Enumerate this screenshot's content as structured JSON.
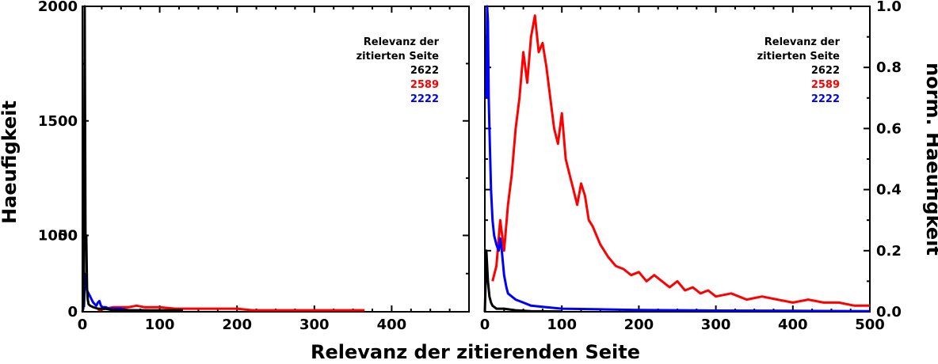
{
  "xlabel": "Relevanz der zitierenden Seite",
  "chart_data": [
    {
      "type": "line",
      "panel": "left",
      "ylabel": "Haeufigkeit",
      "xlim": [
        0,
        500
      ],
      "x_ticks": [
        "0",
        "100",
        "200",
        "300",
        "400"
      ],
      "y_scale": "broken",
      "y_ticks": [
        "0",
        "50",
        "1000",
        "1500",
        "2000"
      ],
      "legend_placement": "top-right",
      "legend_title": [
        "Relevanz der",
        "zitierten Seite"
      ],
      "series": [
        {
          "name": "2622",
          "color": "#000000",
          "points": [
            [
              0,
              0
            ],
            [
              1,
              2
            ],
            [
              2,
              8
            ],
            [
              3,
              2000
            ],
            [
              4,
              350
            ],
            [
              5,
              60
            ],
            [
              6,
              15
            ],
            [
              7,
              8
            ],
            [
              8,
              5
            ],
            [
              10,
              4
            ],
            [
              14,
              3
            ],
            [
              20,
              2
            ],
            [
              30,
              2
            ],
            [
              40,
              1
            ],
            [
              60,
              1
            ],
            [
              80,
              1
            ],
            [
              100,
              1
            ],
            [
              130,
              1
            ]
          ]
        },
        {
          "name": "2589",
          "color": "#ff0000",
          "points": [
            [
              20,
              1
            ],
            [
              30,
              2
            ],
            [
              40,
              3
            ],
            [
              50,
              3
            ],
            [
              60,
              3
            ],
            [
              70,
              4
            ],
            [
              80,
              3
            ],
            [
              90,
              3
            ],
            [
              100,
              3
            ],
            [
              120,
              2
            ],
            [
              140,
              2
            ],
            [
              160,
              2
            ],
            [
              180,
              2
            ],
            [
              200,
              2
            ],
            [
              220,
              1
            ],
            [
              240,
              1
            ],
            [
              260,
              1
            ],
            [
              280,
              1
            ],
            [
              300,
              1
            ],
            [
              320,
              1
            ],
            [
              340,
              1
            ],
            [
              365,
              1
            ]
          ]
        },
        {
          "name": "2222",
          "color": "#0000ff",
          "points": [
            [
              2,
              3
            ],
            [
              3,
              18
            ],
            [
              4,
              24
            ],
            [
              5,
              20
            ],
            [
              6,
              14
            ],
            [
              8,
              12
            ],
            [
              10,
              10
            ],
            [
              12,
              8
            ],
            [
              14,
              6
            ],
            [
              16,
              5
            ],
            [
              18,
              4
            ],
            [
              20,
              6
            ],
            [
              22,
              7
            ],
            [
              24,
              4
            ],
            [
              26,
              3
            ],
            [
              30,
              3
            ],
            [
              35,
              2
            ],
            [
              40,
              2
            ],
            [
              50,
              2
            ],
            [
              60,
              1
            ],
            [
              70,
              1
            ],
            [
              85,
              1
            ]
          ]
        }
      ]
    },
    {
      "type": "line",
      "panel": "right",
      "ylabel": "norm. Haeufigkeit",
      "xlim": [
        0,
        500
      ],
      "ylim": [
        0,
        1
      ],
      "x_ticks": [
        "0",
        "100",
        "200",
        "300",
        "400",
        "500"
      ],
      "y_ticks": [
        "0.0",
        "0.2",
        "0.4",
        "0.6",
        "0.8",
        "1.0"
      ],
      "legend_placement": "top-right",
      "legend_title": [
        "Relevanz der",
        "zitierten Seite"
      ],
      "series": [
        {
          "name": "2622",
          "color": "#000000",
          "points": [
            [
              0,
              0.0
            ],
            [
              1,
              0.1
            ],
            [
              2,
              0.2
            ],
            [
              3,
              0.15
            ],
            [
              4,
              0.1
            ],
            [
              6,
              0.05
            ],
            [
              8,
              0.03
            ],
            [
              10,
              0.02
            ],
            [
              15,
              0.01
            ],
            [
              25,
              0.01
            ],
            [
              40,
              0.005
            ],
            [
              60,
              0.002
            ],
            [
              100,
              0.001
            ]
          ]
        },
        {
          "name": "2589",
          "color": "#ff0000",
          "points": [
            [
              10,
              0.1
            ],
            [
              15,
              0.15
            ],
            [
              20,
              0.3
            ],
            [
              25,
              0.2
            ],
            [
              30,
              0.35
            ],
            [
              35,
              0.45
            ],
            [
              40,
              0.6
            ],
            [
              45,
              0.7
            ],
            [
              50,
              0.85
            ],
            [
              55,
              0.75
            ],
            [
              60,
              0.9
            ],
            [
              65,
              0.97
            ],
            [
              70,
              0.85
            ],
            [
              75,
              0.88
            ],
            [
              80,
              0.8
            ],
            [
              85,
              0.7
            ],
            [
              90,
              0.6
            ],
            [
              95,
              0.55
            ],
            [
              100,
              0.65
            ],
            [
              105,
              0.5
            ],
            [
              110,
              0.45
            ],
            [
              115,
              0.4
            ],
            [
              120,
              0.35
            ],
            [
              125,
              0.42
            ],
            [
              130,
              0.38
            ],
            [
              135,
              0.3
            ],
            [
              140,
              0.28
            ],
            [
              145,
              0.25
            ],
            [
              150,
              0.22
            ],
            [
              155,
              0.2
            ],
            [
              160,
              0.18
            ],
            [
              170,
              0.15
            ],
            [
              180,
              0.14
            ],
            [
              190,
              0.12
            ],
            [
              200,
              0.13
            ],
            [
              210,
              0.1
            ],
            [
              220,
              0.12
            ],
            [
              230,
              0.1
            ],
            [
              240,
              0.08
            ],
            [
              250,
              0.1
            ],
            [
              260,
              0.07
            ],
            [
              270,
              0.08
            ],
            [
              280,
              0.06
            ],
            [
              290,
              0.07
            ],
            [
              300,
              0.05
            ],
            [
              320,
              0.06
            ],
            [
              340,
              0.04
            ],
            [
              360,
              0.05
            ],
            [
              380,
              0.04
            ],
            [
              400,
              0.03
            ],
            [
              420,
              0.04
            ],
            [
              440,
              0.03
            ],
            [
              460,
              0.03
            ],
            [
              480,
              0.02
            ],
            [
              500,
              0.02
            ]
          ]
        },
        {
          "name": "2222",
          "color": "#0000ff",
          "points": [
            [
              2,
              0.7
            ],
            [
              3,
              1.0
            ],
            [
              4,
              0.95
            ],
            [
              5,
              0.7
            ],
            [
              6,
              0.6
            ],
            [
              8,
              0.4
            ],
            [
              10,
              0.3
            ],
            [
              12,
              0.25
            ],
            [
              15,
              0.22
            ],
            [
              18,
              0.2
            ],
            [
              20,
              0.24
            ],
            [
              22,
              0.2
            ],
            [
              25,
              0.12
            ],
            [
              28,
              0.08
            ],
            [
              30,
              0.06
            ],
            [
              35,
              0.05
            ],
            [
              40,
              0.04
            ],
            [
              50,
              0.03
            ],
            [
              60,
              0.02
            ],
            [
              80,
              0.015
            ],
            [
              100,
              0.01
            ],
            [
              150,
              0.008
            ],
            [
              200,
              0.006
            ],
            [
              300,
              0.004
            ],
            [
              400,
              0.003
            ],
            [
              500,
              0.002
            ]
          ]
        }
      ]
    }
  ]
}
